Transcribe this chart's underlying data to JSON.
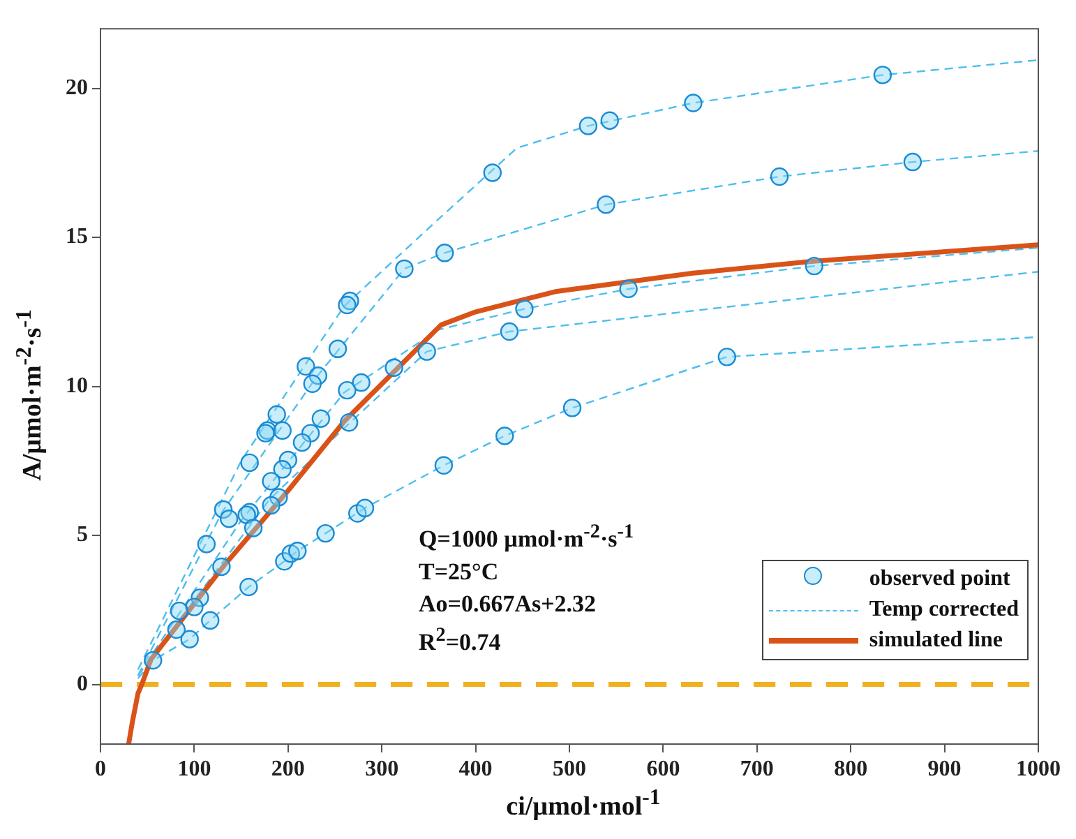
{
  "chart_data": {
    "type": "scatter",
    "xlabel": "ci/µmol·mol$^{-1}$",
    "ylabel": "A/µmol·m$^{-2}$·s$^{-1}$",
    "xlim": [
      0,
      1000
    ],
    "xticks": [
      0,
      100,
      200,
      300,
      400,
      500,
      600,
      700,
      800,
      900,
      1000
    ],
    "ylim": [
      -2,
      22
    ],
    "yticks": [
      0,
      5,
      10,
      15,
      20
    ],
    "grid": false,
    "legend": "bottom right",
    "annotations": [
      "Q=1000 µmol·m$^{-2}$·s$^{-1}$",
      "T=25°C",
      "Ao=0.667As+2.32",
      "R$^{2}$=0.74"
    ],
    "ref_lines": [
      {
        "axis": "y",
        "value": 0,
        "color": "#f0b020",
        "line_style": "dashed"
      }
    ],
    "series": [
      {
        "name": "observed point",
        "type": "scatter",
        "marker": "circle",
        "color": "#1a8ad4",
        "x": [
          56,
          95,
          117,
          158,
          196,
          203,
          210,
          240,
          274,
          282,
          366,
          431,
          503,
          668,
          324,
          266,
          263,
          253,
          219,
          232,
          226,
          313,
          278,
          263,
          348,
          265,
          235,
          188,
          178,
          176,
          194,
          224,
          215,
          200,
          194,
          159,
          182,
          190,
          182,
          131,
          137,
          159,
          156,
          163,
          113,
          129,
          106,
          100,
          84,
          81,
          418,
          520,
          543,
          632,
          834,
          367,
          539,
          724,
          866,
          452,
          563,
          761,
          436
        ],
        "values": [
          0.81,
          1.52,
          2.15,
          3.27,
          4.13,
          4.39,
          4.48,
          5.07,
          5.74,
          5.92,
          7.35,
          8.34,
          9.28,
          10.99,
          13.95,
          12.87,
          12.73,
          11.26,
          10.67,
          10.36,
          10.09,
          10.63,
          10.13,
          9.87,
          11.17,
          8.79,
          8.92,
          9.06,
          8.52,
          8.43,
          8.52,
          8.43,
          8.12,
          7.53,
          7.22,
          7.44,
          6.82,
          6.28,
          6.01,
          5.87,
          5.56,
          5.78,
          5.69,
          5.25,
          4.71,
          3.95,
          2.91,
          2.6,
          2.47,
          1.84,
          17.17,
          18.74,
          18.92,
          19.51,
          20.45,
          14.48,
          16.1,
          17.04,
          17.53,
          12.6,
          13.27,
          14.04,
          11.84
        ]
      },
      {
        "name": "Temp corrected",
        "type": "line",
        "line_style": "dashed",
        "marker": "none",
        "color": "#4dbeee",
        "x": [
          40,
          150,
          260,
          360,
          444,
          520,
          632,
          834,
          1000
        ],
        "values": [
          0.5,
          7.5,
          12.7,
          15.6,
          18.0,
          18.74,
          19.51,
          20.45,
          20.95
        ]
      },
      {
        "type": "line",
        "line_style": "dashed",
        "marker": "none",
        "color": "#4dbeee",
        "x": [
          40,
          130,
          230,
          324,
          367,
          539,
          724,
          866,
          1000
        ],
        "values": [
          0.3,
          5.8,
          10.3,
          13.95,
          14.48,
          16.1,
          17.04,
          17.53,
          17.9
        ]
      },
      {
        "type": "line",
        "line_style": "dashed",
        "marker": "none",
        "color": "#4dbeee",
        "x": [
          40,
          150,
          260,
          360,
          452,
          563,
          761,
          1000
        ],
        "values": [
          0.3,
          5.5,
          9.8,
          11.9,
          12.6,
          13.27,
          14.04,
          14.65
        ]
      },
      {
        "type": "line",
        "line_style": "dashed",
        "marker": "none",
        "color": "#4dbeee",
        "x": [
          40,
          180,
          270,
          348,
          436,
          1000
        ],
        "values": [
          0.3,
          6.2,
          8.9,
          11.17,
          11.84,
          13.85
        ]
      },
      {
        "type": "line",
        "line_style": "dashed",
        "marker": "none",
        "color": "#4dbeee",
        "x": [
          40,
          56,
          95,
          117,
          158,
          196,
          210,
          240,
          282,
          366,
          431,
          503,
          668,
          1000
        ],
        "values": [
          0.2,
          0.81,
          1.52,
          2.15,
          3.27,
          4.13,
          4.48,
          5.07,
          5.92,
          7.35,
          8.34,
          9.28,
          10.99,
          11.66
        ]
      },
      {
        "name": "simulated line",
        "type": "line",
        "line_style": "solid",
        "marker": "none",
        "color": "#d95319",
        "x": [
          30,
          34,
          40,
          44,
          54,
          132,
          200,
          260,
          363,
          400,
          485,
          632,
          760,
          1000
        ],
        "values": [
          -2,
          -1.26,
          -0.3,
          0,
          0.85,
          4.0,
          6.5,
          8.83,
          12.06,
          12.5,
          13.18,
          13.8,
          14.2,
          14.75
        ]
      }
    ]
  }
}
